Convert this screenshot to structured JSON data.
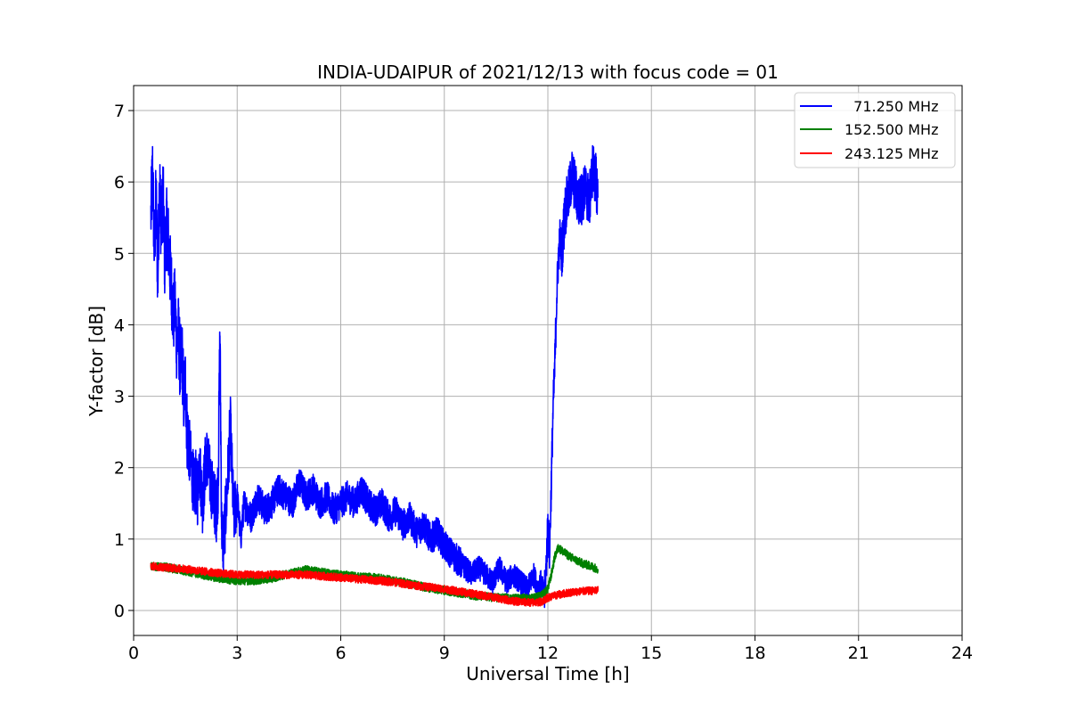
{
  "chart_data": {
    "type": "line",
    "title": "INDIA-UDAIPUR of 2021/12/13 with focus code = 01",
    "xlabel": "Universal Time [h]",
    "ylabel": "Y-factor [dB]",
    "xlim": [
      0,
      24
    ],
    "ylim": [
      -0.35,
      7.35
    ],
    "xticks": [
      0,
      3,
      6,
      9,
      12,
      15,
      18,
      21,
      24
    ],
    "yticks": [
      0,
      1,
      2,
      3,
      4,
      5,
      6,
      7
    ],
    "grid": true,
    "legend_position": "top-right",
    "series": [
      {
        "name": "  71.250 MHz",
        "color": "#0000ff",
        "x": [
          0.5,
          0.55,
          0.6,
          0.65,
          0.7,
          0.75,
          0.8,
          0.85,
          0.9,
          0.95,
          1.0,
          1.05,
          1.1,
          1.15,
          1.2,
          1.25,
          1.3,
          1.35,
          1.4,
          1.45,
          1.5,
          1.55,
          1.6,
          1.65,
          1.7,
          1.75,
          1.8,
          1.85,
          1.9,
          2.0,
          2.1,
          2.2,
          2.3,
          2.4,
          2.45,
          2.5,
          2.55,
          2.6,
          2.7,
          2.8,
          2.9,
          3.0,
          3.1,
          3.2,
          3.4,
          3.6,
          3.8,
          4.0,
          4.2,
          4.4,
          4.6,
          4.8,
          5.0,
          5.2,
          5.4,
          5.6,
          5.8,
          6.0,
          6.2,
          6.4,
          6.6,
          6.8,
          7.0,
          7.2,
          7.4,
          7.6,
          7.8,
          8.0,
          8.2,
          8.4,
          8.6,
          8.8,
          9.0,
          9.2,
          9.4,
          9.6,
          9.8,
          10.0,
          10.2,
          10.4,
          10.6,
          10.8,
          11.0,
          11.2,
          11.4,
          11.6,
          11.7,
          11.8,
          11.9,
          11.95,
          12.0,
          12.05,
          12.1,
          12.15,
          12.2,
          12.25,
          12.3,
          12.35,
          12.4,
          12.5,
          12.6,
          12.7,
          12.8,
          12.9,
          13.0,
          13.1,
          13.2,
          13.3,
          13.4,
          13.45
        ],
        "values": [
          5.5,
          6.2,
          5.0,
          5.8,
          4.6,
          6.1,
          5.3,
          5.9,
          4.9,
          5.4,
          5.2,
          4.8,
          4.5,
          4.1,
          4.3,
          3.7,
          3.9,
          3.4,
          3.6,
          3.0,
          3.2,
          2.5,
          2.3,
          2.1,
          1.9,
          1.7,
          1.8,
          1.6,
          2.1,
          1.5,
          2.2,
          1.9,
          1.6,
          1.4,
          1.8,
          3.9,
          1.2,
          0.9,
          1.6,
          2.6,
          1.3,
          1.6,
          1.0,
          1.5,
          1.3,
          1.6,
          1.4,
          1.5,
          1.7,
          1.6,
          1.5,
          1.8,
          1.6,
          1.7,
          1.5,
          1.6,
          1.4,
          1.5,
          1.6,
          1.5,
          1.7,
          1.5,
          1.4,
          1.5,
          1.3,
          1.4,
          1.2,
          1.3,
          1.1,
          1.2,
          1.0,
          1.1,
          0.9,
          0.8,
          0.7,
          0.6,
          0.5,
          0.6,
          0.5,
          0.4,
          0.6,
          0.4,
          0.5,
          0.4,
          0.3,
          0.5,
          0.3,
          0.4,
          0.2,
          0.6,
          1.2,
          0.8,
          1.8,
          2.8,
          3.4,
          4.3,
          4.9,
          5.2,
          5.0,
          5.6,
          5.8,
          6.1,
          5.9,
          5.7,
          5.8,
          5.9,
          5.7,
          6.2,
          6.0,
          5.8
        ]
      },
      {
        "name": "152.500 MHz",
        "color": "#008000",
        "x": [
          0.5,
          1.0,
          1.5,
          2.0,
          2.5,
          3.0,
          3.5,
          4.0,
          4.5,
          5.0,
          5.5,
          6.0,
          6.5,
          7.0,
          7.5,
          8.0,
          8.5,
          9.0,
          9.5,
          10.0,
          10.5,
          11.0,
          11.5,
          11.8,
          12.0,
          12.1,
          12.2,
          12.3,
          12.5,
          12.75,
          13.0,
          13.25,
          13.45
        ],
        "values": [
          0.62,
          0.6,
          0.55,
          0.5,
          0.45,
          0.42,
          0.42,
          0.45,
          0.52,
          0.57,
          0.53,
          0.5,
          0.47,
          0.46,
          0.42,
          0.38,
          0.32,
          0.28,
          0.24,
          0.2,
          0.18,
          0.17,
          0.17,
          0.2,
          0.3,
          0.5,
          0.75,
          0.88,
          0.8,
          0.72,
          0.66,
          0.62,
          0.58
        ]
      },
      {
        "name": "243.125 MHz",
        "color": "#ff0000",
        "x": [
          0.5,
          1.0,
          1.5,
          2.0,
          2.5,
          3.0,
          3.5,
          4.0,
          4.5,
          5.0,
          5.5,
          6.0,
          6.5,
          7.0,
          7.5,
          8.0,
          8.5,
          9.0,
          9.5,
          10.0,
          10.5,
          11.0,
          11.5,
          11.8,
          12.0,
          12.3,
          12.6,
          13.0,
          13.45
        ],
        "values": [
          0.62,
          0.6,
          0.58,
          0.55,
          0.52,
          0.5,
          0.5,
          0.5,
          0.5,
          0.5,
          0.48,
          0.46,
          0.44,
          0.42,
          0.4,
          0.36,
          0.33,
          0.3,
          0.26,
          0.22,
          0.18,
          0.13,
          0.11,
          0.12,
          0.18,
          0.22,
          0.25,
          0.27,
          0.28
        ]
      }
    ]
  }
}
